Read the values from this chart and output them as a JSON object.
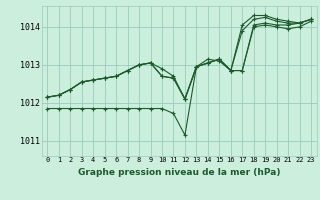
{
  "title": "Graphe pression niveau de la mer (hPa)",
  "background_color": "#cceedd",
  "plot_bg_color": "#cceedd",
  "grid_color": "#99ccbb",
  "line_color": "#1a5c2a",
  "x_ticks": [
    0,
    1,
    2,
    3,
    4,
    5,
    6,
    7,
    8,
    9,
    10,
    11,
    12,
    13,
    14,
    15,
    16,
    17,
    18,
    19,
    20,
    21,
    22,
    23
  ],
  "y_ticks": [
    1011,
    1012,
    1013,
    1014
  ],
  "ylim": [
    1010.6,
    1014.55
  ],
  "xlim": [
    -0.5,
    23.5
  ],
  "series": [
    [
      1012.15,
      1012.2,
      1012.35,
      1012.55,
      1012.6,
      1012.65,
      1012.7,
      1012.85,
      1013.0,
      1013.05,
      1012.9,
      1012.7,
      1012.1,
      1012.95,
      1013.05,
      1013.15,
      1012.85,
      1012.85,
      1014.05,
      1014.1,
      1014.05,
      1014.05,
      1014.1,
      1014.2
    ],
    [
      1012.15,
      1012.2,
      1012.35,
      1012.55,
      1012.6,
      1012.65,
      1012.7,
      1012.85,
      1013.0,
      1013.05,
      1012.7,
      1012.65,
      1012.1,
      1012.95,
      1013.05,
      1013.15,
      1012.85,
      1013.9,
      1014.2,
      1014.25,
      1014.15,
      1014.1,
      1014.1,
      1014.2
    ],
    [
      1012.15,
      1012.2,
      1012.35,
      1012.55,
      1012.6,
      1012.65,
      1012.7,
      1012.85,
      1013.0,
      1013.05,
      1012.7,
      1012.65,
      1012.1,
      1012.95,
      1013.05,
      1013.15,
      1012.85,
      1014.05,
      1014.3,
      1014.3,
      1014.2,
      1014.15,
      1014.1,
      1014.2
    ],
    [
      1011.85,
      1011.85,
      1011.85,
      1011.85,
      1011.85,
      1011.85,
      1011.85,
      1011.85,
      1011.85,
      1011.85,
      1011.85,
      1011.72,
      1011.15,
      1012.95,
      1013.15,
      1013.1,
      1012.85,
      1012.85,
      1014.0,
      1014.05,
      1014.0,
      1013.95,
      1014.0,
      1014.15
    ]
  ]
}
